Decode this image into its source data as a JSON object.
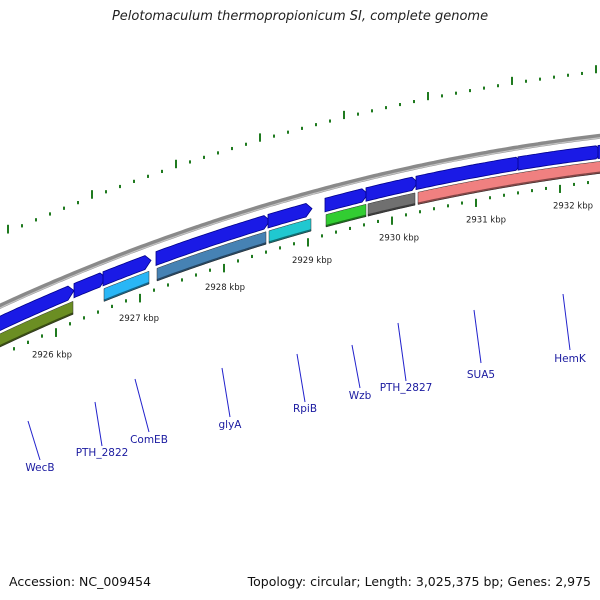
{
  "title": "Pelotomaculum thermopropionicum SI, complete genome",
  "footer": {
    "accession": "Accession: NC_009454",
    "summary": "Topology: circular; Length: 3,025,375 bp; Genes: 2,975"
  },
  "colors": {
    "backbone": "#8a8a8a",
    "cds": "#1a1ae6",
    "tick_marks": "#1f7a1f",
    "label_lines": "#2222cc",
    "label_text": "#1a1aa0"
  },
  "scale": {
    "labels": [
      "2926 kbp",
      "2927 kbp",
      "2928 kbp",
      "2929 kbp",
      "2930 kbp",
      "2931 kbp",
      "2932 kbp"
    ]
  },
  "genes": [
    {
      "name": "WecB",
      "color": "#6b8e23"
    },
    {
      "name": "PTH_2822",
      "color": "#1a1ae6"
    },
    {
      "name": "ComEB",
      "color": "#29b6f6"
    },
    {
      "name": "glyA",
      "color": "#4682b4"
    },
    {
      "name": "RpiB",
      "color": "#20c8d0"
    },
    {
      "name": "Wzb",
      "color": "#32cd32"
    },
    {
      "name": "PTH_2827",
      "color": "#707070"
    },
    {
      "name": "SUA5",
      "color": "#f08080"
    },
    {
      "name": "HemK",
      "color": "#f08080"
    }
  ]
}
